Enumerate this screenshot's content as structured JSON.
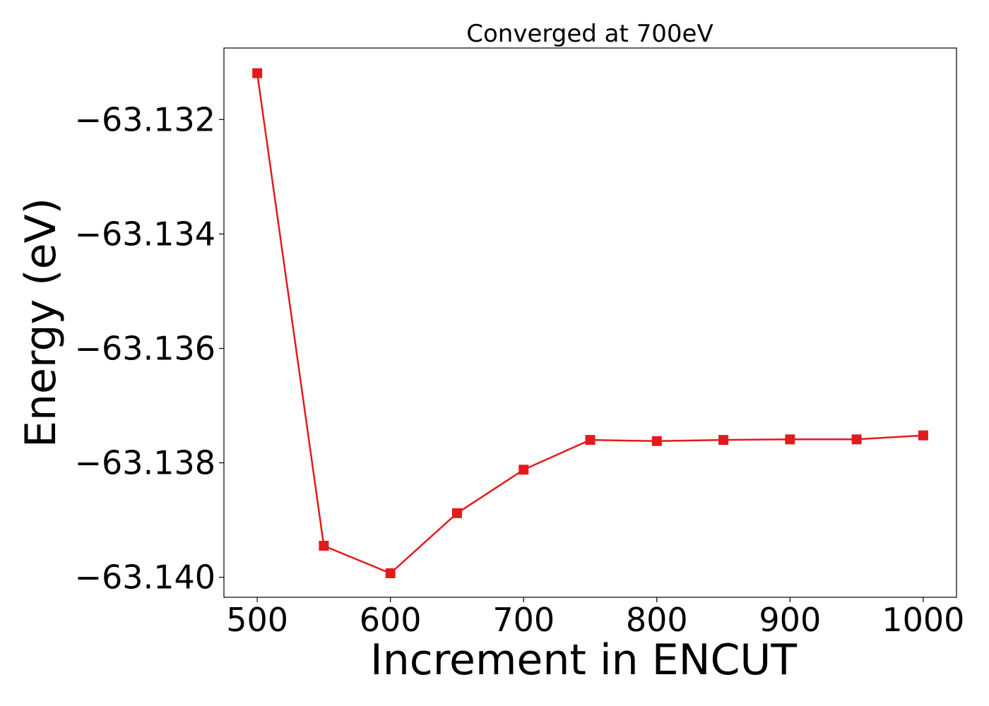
{
  "chart_data": {
    "type": "line",
    "title": "Converged at 700eV",
    "xlabel": "Increment in ENCUT",
    "ylabel": "Energy (eV)",
    "x": [
      500,
      550,
      600,
      650,
      700,
      750,
      800,
      850,
      900,
      950,
      1000
    ],
    "series": [
      {
        "values": [
          -63.13119,
          -63.13945,
          -63.13993,
          -63.13888,
          -63.13812,
          -63.1376,
          -63.13762,
          -63.1376,
          -63.13759,
          -63.13759,
          -63.13752
        ],
        "color": "#e31a1c",
        "marker": "square"
      }
    ],
    "xlim": [
      475,
      1025
    ],
    "ylim": [
      -63.14035,
      -63.13075
    ],
    "xticks": [
      500,
      600,
      700,
      800,
      900,
      1000
    ],
    "xtick_labels": [
      "500",
      "600",
      "700",
      "800",
      "900",
      "1000"
    ],
    "yticks": [
      -63.132,
      -63.134,
      -63.136,
      -63.138,
      -63.14
    ],
    "ytick_labels": [
      "−63.132",
      "−63.134",
      "−63.136",
      "−63.138",
      "−63.140"
    ],
    "grid": false,
    "legend": "none"
  }
}
